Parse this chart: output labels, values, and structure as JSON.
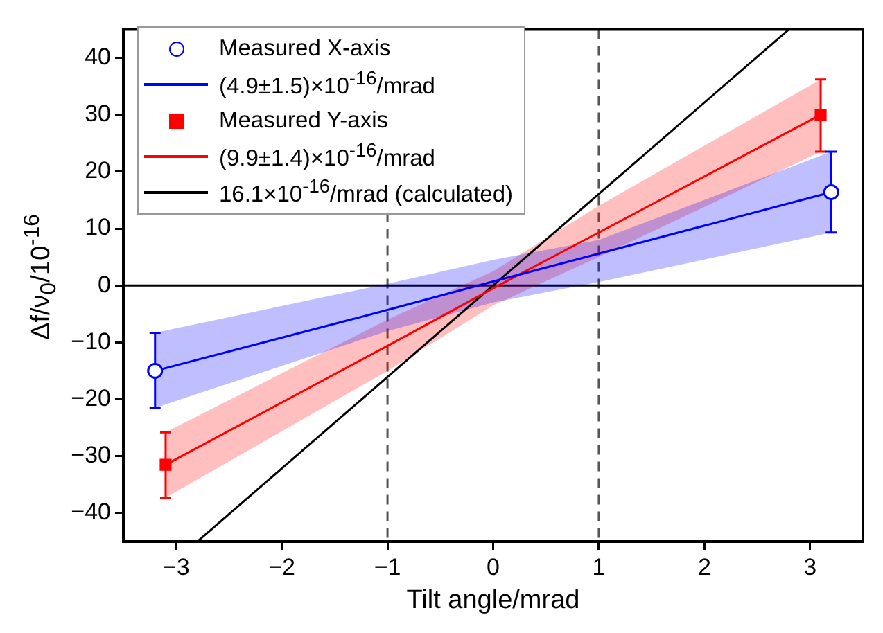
{
  "chart_data": {
    "type": "scatter",
    "xlabel": "Tilt angle/mrad",
    "ylabel": "Δf/ν$_{0}$/10$^{-16}$",
    "xlim": [
      -3.5,
      3.5
    ],
    "ylim": [
      -45,
      45
    ],
    "xticks": [
      {
        "value": -3,
        "label": "−3"
      },
      {
        "value": -2,
        "label": "−2"
      },
      {
        "value": -1,
        "label": "−1"
      },
      0,
      1,
      2,
      3
    ],
    "yticks": [
      {
        "value": -40,
        "label": "−40"
      },
      {
        "value": -30,
        "label": "−30"
      },
      {
        "value": -20,
        "label": "−20"
      },
      {
        "value": -10,
        "label": "−10"
      },
      0,
      10,
      20,
      30,
      40
    ],
    "grid": false,
    "legend": "top left",
    "ref_lines": [
      {
        "axis": "x",
        "value": -1,
        "color": "#555555",
        "line_style": "dashed"
      },
      {
        "axis": "x",
        "value": 1,
        "color": "#555555",
        "line_style": "dashed"
      },
      {
        "axis": "y",
        "value": 0,
        "color": "#000000",
        "line_style": "solid"
      }
    ],
    "series": [
      {
        "name": "Measured X-axis",
        "marker": "circle",
        "color": "#0000ff",
        "x": [
          -3.2,
          3.2
        ],
        "values": [
          -15,
          16.4
        ],
        "errors": [
          [
            -21.5,
            -8.3
          ],
          [
            9.3,
            23.5
          ]
        ]
      },
      {
        "name": "(4.9±1.5)×10$^{-16}$/mrad",
        "type": "line",
        "marker": "none",
        "color": "#0000ff",
        "x": [
          -3.2,
          -1,
          0,
          1,
          3.2
        ],
        "values": [
          -15,
          -4.3,
          0.7,
          5.6,
          16.4
        ],
        "lower": [
          -21.5,
          -8,
          -3,
          0.6,
          9.3
        ],
        "upper": [
          -8.3,
          0.3,
          4.5,
          8,
          23.5
        ]
      },
      {
        "name": "Measured Y-axis",
        "marker": "square",
        "color": "#ff0000",
        "x": [
          -3.1,
          3.1
        ],
        "values": [
          -31.5,
          30
        ],
        "errors": [
          [
            -37.3,
            -25.8
          ],
          [
            23.5,
            36.2
          ]
        ]
      },
      {
        "name": "(9.9±1.4)×10$^{-16}$/mrad",
        "type": "line",
        "marker": "none",
        "color": "#ff0000",
        "x": [
          -3.1,
          -1,
          0,
          1,
          3.1
        ],
        "values": [
          -31.5,
          -10.6,
          -0.5,
          9.3,
          30
        ],
        "lower": [
          -37.3,
          -15,
          -3.5,
          5,
          23.5
        ],
        "upper": [
          -25.8,
          -6,
          2.5,
          14,
          36.2
        ]
      },
      {
        "name": "16.1×10$^{-16}$/mrad (calculated)",
        "type": "line",
        "marker": "none",
        "color": "#000000",
        "x": [
          -2.8,
          2.8
        ],
        "values": [
          -45,
          45
        ]
      }
    ]
  }
}
